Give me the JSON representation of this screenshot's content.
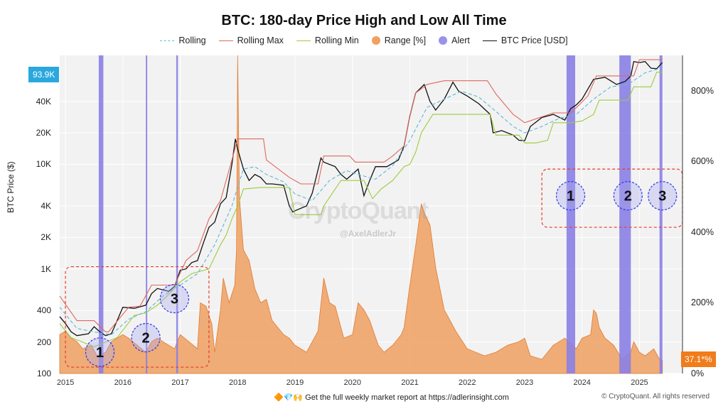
{
  "title": "BTC: 180-day Price High and Low All Time",
  "legend": [
    {
      "label": "Rolling",
      "kind": "dash",
      "color": "#5bb8d8"
    },
    {
      "label": "Rolling Max",
      "kind": "line",
      "color": "#e0685e"
    },
    {
      "label": "Rolling Min",
      "kind": "line",
      "color": "#9ccc3c"
    },
    {
      "label": "Range [%]",
      "kind": "dot",
      "color": "#f0a060"
    },
    {
      "label": "Alert",
      "kind": "dot",
      "color": "#9a92ea"
    },
    {
      "label": "BTC Price [USD]",
      "kind": "line",
      "color": "#111111"
    }
  ],
  "badges": {
    "price": "93.9K",
    "range": "37.1*%"
  },
  "watermark": {
    "brand": "CryptoQuant",
    "handle": "@AxelAdlerJr"
  },
  "footer": {
    "promo": "🔶💎🙌  Get the full weekly market report at https://adlerinsight.com",
    "copyright": "© CryptoQuant. All rights reserved"
  },
  "chart_data": {
    "type": "line",
    "title": "BTC: 180-day Price High and Low All Time",
    "ylabel": "BTC Price ($)",
    "y_scale": "log",
    "ylim": [
      100,
      110000
    ],
    "y_ticks": [
      {
        "v": 100,
        "label": "100"
      },
      {
        "v": 200,
        "label": "200"
      },
      {
        "v": 400,
        "label": "400"
      },
      {
        "v": 1000,
        "label": "1K"
      },
      {
        "v": 2000,
        "label": "2K"
      },
      {
        "v": 4000,
        "label": "4K"
      },
      {
        "v": 10000,
        "label": "10K"
      },
      {
        "v": 20000,
        "label": "20K"
      },
      {
        "v": 40000,
        "label": "40K"
      }
    ],
    "y2label": "Range [%]",
    "y2lim": [
      0,
      900
    ],
    "y2_ticks": [
      {
        "v": 0,
        "label": "0%"
      },
      {
        "v": 200,
        "label": "200%"
      },
      {
        "v": 400,
        "label": "400%"
      },
      {
        "v": 600,
        "label": "600%"
      },
      {
        "v": 800,
        "label": "800%"
      }
    ],
    "xlim": [
      2014.9,
      2025.75
    ],
    "x_ticks": [
      2015,
      2016,
      2017,
      2018,
      2019,
      2020,
      2021,
      2022,
      2023,
      2024,
      2025
    ],
    "grid": true,
    "series": [
      {
        "name": "BTC Price [USD]",
        "color": "#111111",
        "axis": "left",
        "x": [
          2014.9,
          2015.0,
          2015.1,
          2015.2,
          2015.4,
          2015.5,
          2015.6,
          2015.7,
          2015.8,
          2015.9,
          2016.0,
          2016.2,
          2016.4,
          2016.5,
          2016.6,
          2016.8,
          2016.9,
          2017.0,
          2017.1,
          2017.2,
          2017.3,
          2017.4,
          2017.5,
          2017.6,
          2017.7,
          2017.8,
          2017.9,
          2017.96,
          2018.0,
          2018.1,
          2018.2,
          2018.3,
          2018.4,
          2018.5,
          2018.6,
          2018.7,
          2018.8,
          2018.9,
          2018.96,
          2019.0,
          2019.2,
          2019.3,
          2019.45,
          2019.5,
          2019.7,
          2019.8,
          2019.9,
          2020.1,
          2020.2,
          2020.3,
          2020.4,
          2020.6,
          2020.8,
          2020.9,
          2021.0,
          2021.1,
          2021.25,
          2021.35,
          2021.45,
          2021.6,
          2021.75,
          2021.85,
          2022.0,
          2022.2,
          2022.4,
          2022.45,
          2022.6,
          2022.8,
          2022.9,
          2023.0,
          2023.1,
          2023.3,
          2023.5,
          2023.7,
          2023.8,
          2023.9,
          2024.0,
          2024.2,
          2024.4,
          2024.6,
          2024.75,
          2024.85,
          2024.9,
          2025.0,
          2025.1,
          2025.2,
          2025.3,
          2025.4
        ],
        "y": [
          350,
          300,
          250,
          230,
          240,
          280,
          250,
          230,
          240,
          320,
          430,
          420,
          450,
          580,
          650,
          610,
          680,
          970,
          1000,
          1150,
          1200,
          1750,
          2500,
          2800,
          4200,
          4800,
          10000,
          17500,
          14000,
          9000,
          7000,
          8000,
          7500,
          6500,
          6500,
          6400,
          6300,
          4000,
          3500,
          3600,
          4000,
          5300,
          11500,
          10500,
          9500,
          8000,
          7200,
          9000,
          5000,
          7000,
          9500,
          9500,
          11000,
          15000,
          29000,
          48000,
          58000,
          40000,
          33000,
          42000,
          61000,
          50000,
          45000,
          38000,
          30000,
          20000,
          21000,
          19000,
          17000,
          16800,
          23000,
          28000,
          30000,
          26500,
          34000,
          37000,
          42000,
          65000,
          68000,
          58000,
          62000,
          70000,
          96000,
          94000,
          96000,
          83000,
          82000,
          93900
        ]
      },
      {
        "name": "Rolling Max",
        "color": "#e0685e",
        "axis": "left",
        "x": [
          2014.9,
          2015.2,
          2015.5,
          2015.7,
          2015.75,
          2016.1,
          2016.3,
          2016.5,
          2016.9,
          2017.1,
          2017.3,
          2017.5,
          2017.7,
          2017.9,
          2018.0,
          2018.45,
          2018.5,
          2018.9,
          2019.1,
          2019.4,
          2019.5,
          2019.95,
          2020.05,
          2020.2,
          2020.55,
          2020.7,
          2020.9,
          2021.0,
          2021.1,
          2021.3,
          2021.6,
          2022.35,
          2022.5,
          2022.8,
          2023.0,
          2023.5,
          2023.8,
          2023.95,
          2024.1,
          2024.25,
          2024.9,
          2025.0,
          2025.4
        ],
        "y": [
          550,
          320,
          320,
          250,
          250,
          430,
          440,
          700,
          700,
          1200,
          1500,
          3000,
          4500,
          11000,
          17500,
          17500,
          11000,
          7500,
          6500,
          6500,
          12000,
          12000,
          10500,
          10500,
          10500,
          12000,
          15000,
          29000,
          48000,
          58000,
          63000,
          63000,
          47000,
          30000,
          25000,
          31000,
          31000,
          37000,
          45000,
          70000,
          70000,
          100000,
          100000
        ]
      },
      {
        "name": "Rolling Min",
        "color": "#9ccc3c",
        "axis": "left",
        "x": [
          2014.9,
          2015.1,
          2015.3,
          2015.5,
          2015.7,
          2015.9,
          2016.2,
          2016.4,
          2016.6,
          2016.8,
          2017.0,
          2017.2,
          2017.5,
          2017.7,
          2017.8,
          2017.9,
          2018.0,
          2018.1,
          2018.4,
          2018.5,
          2018.9,
          2019.0,
          2019.45,
          2019.5,
          2019.8,
          2020.0,
          2020.2,
          2020.35,
          2020.5,
          2020.7,
          2020.9,
          2021.0,
          2021.1,
          2021.2,
          2021.4,
          2021.5,
          2022.0,
          2022.4,
          2022.5,
          2022.9,
          2023.0,
          2023.2,
          2023.4,
          2023.5,
          2023.8,
          2024.0,
          2024.2,
          2024.3,
          2024.8,
          2024.9,
          2025.2,
          2025.3,
          2025.4
        ],
        "y": [
          300,
          220,
          200,
          180,
          200,
          220,
          360,
          380,
          450,
          570,
          750,
          900,
          1000,
          1700,
          2100,
          3000,
          4000,
          5800,
          6000,
          6000,
          6000,
          3300,
          3300,
          4000,
          7000,
          7000,
          7000,
          4700,
          5800,
          7000,
          9500,
          10000,
          13000,
          20000,
          30000,
          30000,
          30000,
          30000,
          19000,
          19000,
          16000,
          16000,
          17000,
          25000,
          25000,
          26000,
          30000,
          41000,
          41000,
          55000,
          55000,
          76000,
          76000
        ]
      },
      {
        "name": "Rolling",
        "color": "#5bb8d8",
        "axis": "left",
        "dash": true,
        "x": [
          2014.9,
          2015.2,
          2015.5,
          2015.8,
          2016.1,
          2016.4,
          2016.7,
          2017.0,
          2017.3,
          2017.6,
          2017.9,
          2018.1,
          2018.3,
          2018.5,
          2018.8,
          2019.0,
          2019.3,
          2019.6,
          2019.9,
          2020.1,
          2020.4,
          2020.7,
          2021.0,
          2021.3,
          2021.6,
          2021.9,
          2022.2,
          2022.5,
          2022.8,
          2023.0,
          2023.3,
          2023.6,
          2023.9,
          2024.2,
          2024.5,
          2024.8,
          2025.1,
          2025.4
        ],
        "y": [
          430,
          270,
          250,
          235,
          330,
          390,
          550,
          700,
          900,
          1700,
          4000,
          9000,
          9500,
          8000,
          6800,
          5200,
          4500,
          7000,
          8700,
          8000,
          7200,
          9700,
          17000,
          35000,
          42000,
          50000,
          44000,
          32000,
          23000,
          20000,
          23000,
          27500,
          30000,
          42000,
          55000,
          58000,
          75000,
          84000
        ]
      },
      {
        "name": "Range [%]",
        "color": "#f0a060",
        "axis": "right",
        "area": true,
        "x": [
          2014.9,
          2015.0,
          2015.1,
          2015.2,
          2015.3,
          2015.45,
          2015.55,
          2015.7,
          2015.8,
          2016.0,
          2016.1,
          2016.25,
          2016.4,
          2016.5,
          2016.6,
          2016.8,
          2016.9,
          2017.0,
          2017.15,
          2017.3,
          2017.35,
          2017.45,
          2017.55,
          2017.6,
          2017.7,
          2017.75,
          2017.85,
          2017.95,
          2017.98,
          2018.0,
          2018.03,
          2018.1,
          2018.2,
          2018.3,
          2018.4,
          2018.5,
          2018.6,
          2018.8,
          2018.9,
          2019.0,
          2019.2,
          2019.4,
          2019.5,
          2019.6,
          2019.7,
          2019.85,
          2020.0,
          2020.1,
          2020.2,
          2020.3,
          2020.45,
          2020.55,
          2020.7,
          2020.85,
          2020.9,
          2021.0,
          2021.1,
          2021.2,
          2021.25,
          2021.35,
          2021.45,
          2021.6,
          2021.8,
          2022.0,
          2022.3,
          2022.5,
          2022.7,
          2022.9,
          2023.0,
          2023.1,
          2023.3,
          2023.5,
          2023.7,
          2023.9,
          2024.0,
          2024.15,
          2024.2,
          2024.25,
          2024.3,
          2024.4,
          2024.55,
          2024.7,
          2024.85,
          2024.9,
          2025.0,
          2025.1,
          2025.25,
          2025.35,
          2025.4
        ],
        "y": [
          110,
          120,
          100,
          90,
          70,
          80,
          50,
          60,
          90,
          110,
          100,
          80,
          60,
          90,
          100,
          80,
          70,
          110,
          90,
          70,
          200,
          190,
          140,
          60,
          180,
          270,
          200,
          250,
          350,
          900,
          500,
          350,
          320,
          240,
          200,
          210,
          150,
          110,
          100,
          80,
          60,
          120,
          270,
          200,
          190,
          100,
          110,
          200,
          180,
          150,
          80,
          60,
          80,
          110,
          130,
          250,
          360,
          480,
          455,
          420,
          300,
          180,
          120,
          70,
          50,
          60,
          80,
          90,
          100,
          50,
          40,
          80,
          100,
          70,
          100,
          110,
          180,
          170,
          130,
          100,
          80,
          40,
          60,
          90,
          60,
          50,
          70,
          40,
          37
        ]
      }
    ],
    "alerts": [
      {
        "x0": 2015.58,
        "x1": 2015.66,
        "label": "1"
      },
      {
        "x0": 2016.4,
        "x1": 2016.42,
        "label": ""
      },
      {
        "x0": 2016.93,
        "x1": 2016.96,
        "label": ""
      },
      {
        "x0": 2023.73,
        "x1": 2023.88,
        "label": ""
      },
      {
        "x0": 2024.65,
        "x1": 2024.85,
        "label": ""
      },
      {
        "x0": 2025.35,
        "x1": 2025.4,
        "label": ""
      }
    ],
    "alert_markers": [
      {
        "x": 2015.6,
        "y": 160,
        "label": "1",
        "group": "a"
      },
      {
        "x": 2016.4,
        "y": 220,
        "label": "2",
        "group": "a"
      },
      {
        "x": 2016.9,
        "y": 520,
        "label": "3",
        "group": "a"
      },
      {
        "x": 2023.8,
        "y": 5000,
        "label": "1",
        "group": "b"
      },
      {
        "x": 2024.8,
        "y": 5000,
        "label": "2",
        "group": "b"
      },
      {
        "x": 2025.4,
        "y": 5000,
        "label": "3",
        "group": "b"
      }
    ],
    "highlight_boxes": [
      {
        "x0": 2015.0,
        "x1": 2017.5,
        "y0": 115,
        "y1": 1050
      },
      {
        "x0": 2023.3,
        "x1": 2025.75,
        "y0": 2500,
        "y1": 9000
      }
    ]
  }
}
